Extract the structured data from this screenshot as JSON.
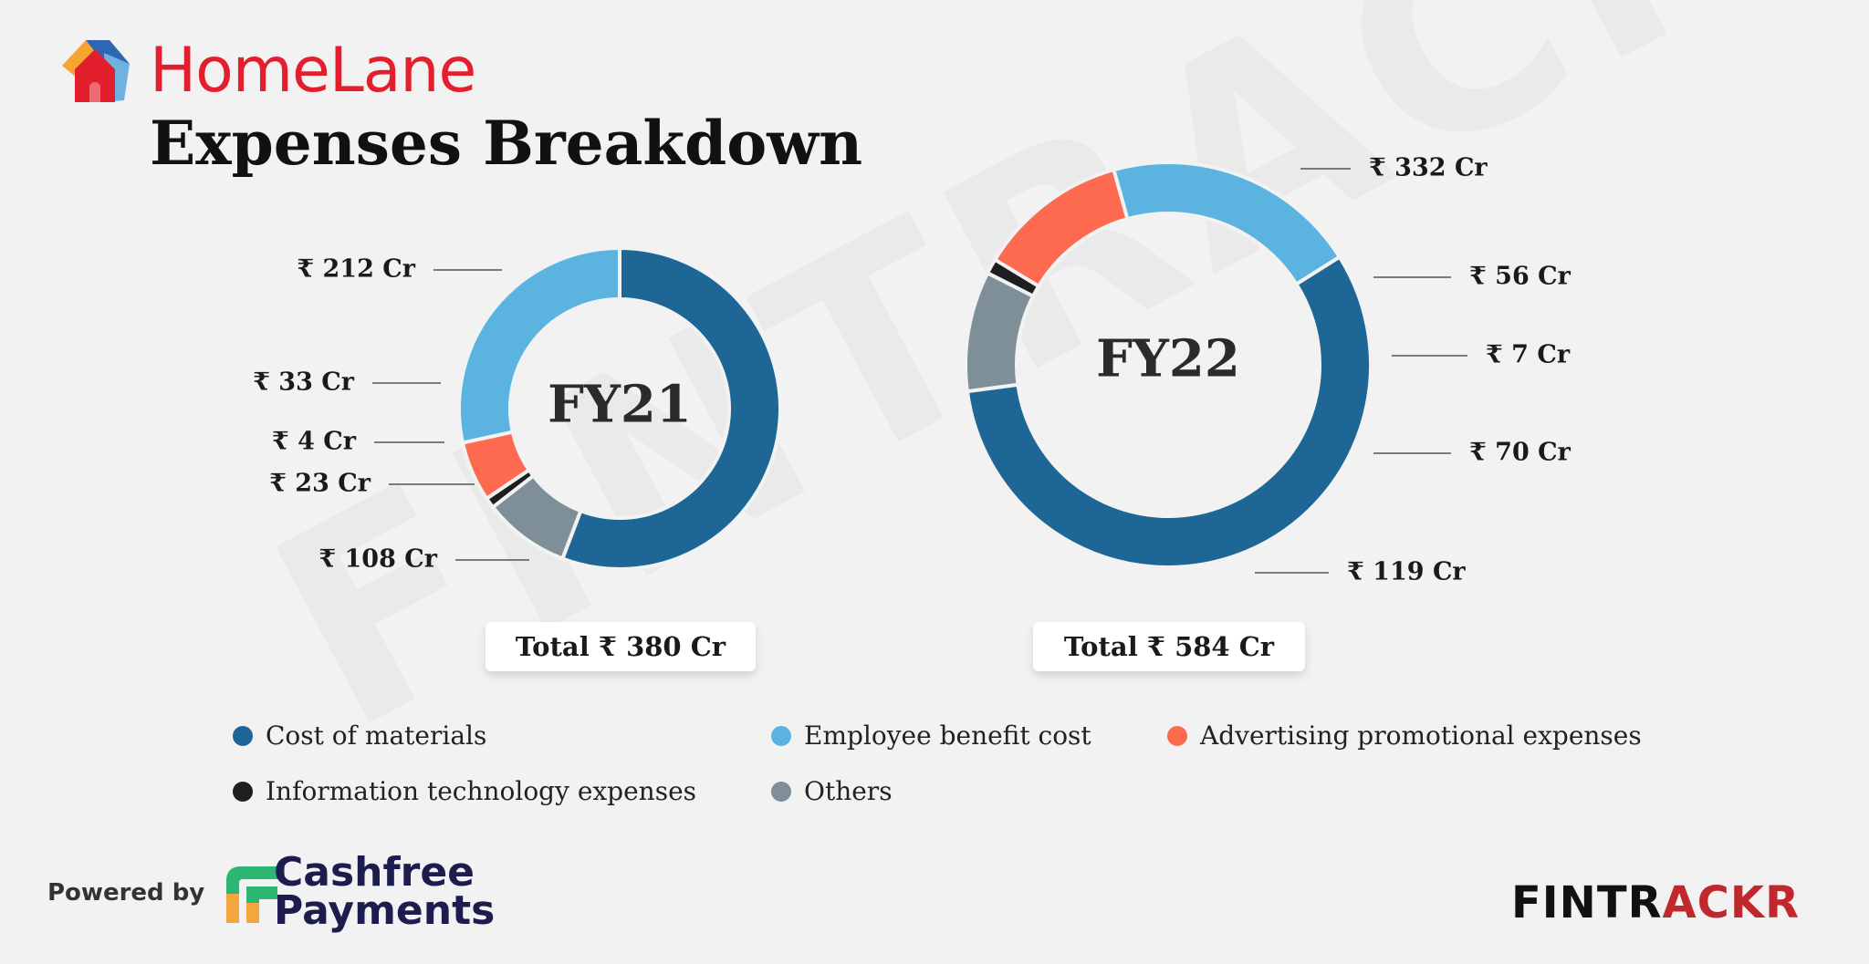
{
  "brand": {
    "name": "HomeLane",
    "color": "#e31e2d"
  },
  "title": "Expenses Breakdown",
  "watermark": "FINTRACKR",
  "colors": {
    "cost_of_materials": "#1d6695",
    "employee_benefit_cost": "#5bb3df",
    "advertising": "#fe6a50",
    "it_expenses": "#1e1e1e",
    "others": "#7e8f98"
  },
  "chart_data": [
    {
      "type": "pie",
      "title": "FY21",
      "total_label": "Total ₹ 380 Cr",
      "slices": [
        {
          "name": "Cost of materials",
          "value": 212,
          "label": "₹ 212 Cr",
          "color": "#1d6695"
        },
        {
          "name": "Employee benefit cost",
          "value": 108,
          "label": "₹ 108 Cr",
          "color": "#5bb3df"
        },
        {
          "name": "Advertising promotional expenses",
          "value": 23,
          "label": "₹ 23 Cr",
          "color": "#fe6a50"
        },
        {
          "name": "Information technology expenses",
          "value": 4,
          "label": "₹ 4 Cr",
          "color": "#1e1e1e"
        },
        {
          "name": "Others",
          "value": 33,
          "label": "₹ 33 Cr",
          "color": "#7e8f98"
        }
      ]
    },
    {
      "type": "pie",
      "title": "FY22",
      "total_label": "Total ₹ 584 Cr",
      "slices": [
        {
          "name": "Cost of materials",
          "value": 332,
          "label": "₹ 332 Cr",
          "color": "#1d6695"
        },
        {
          "name": "Employee benefit cost",
          "value": 119,
          "label": "₹ 119 Cr",
          "color": "#5bb3df"
        },
        {
          "name": "Advertising promotional expenses",
          "value": 70,
          "label": "₹ 70 Cr",
          "color": "#fe6a50"
        },
        {
          "name": "Information technology expenses",
          "value": 7,
          "label": "₹ 7 Cr",
          "color": "#1e1e1e"
        },
        {
          "name": "Others",
          "value": 56,
          "label": "₹ 56 Cr",
          "color": "#7e8f98"
        }
      ]
    }
  ],
  "legend": [
    {
      "label": "Cost of materials",
      "color": "#1d6695"
    },
    {
      "label": "Employee benefit cost",
      "color": "#5bb3df"
    },
    {
      "label": "Advertising promotional expenses",
      "color": "#fe6a50"
    },
    {
      "label": "Information technology expenses",
      "color": "#1e1e1e"
    },
    {
      "label": "Others",
      "color": "#7e8f98"
    }
  ],
  "footer": {
    "powered_by": "Powered by",
    "sponsor": "Cashfree\nPayments",
    "fintrackr_a": "FINTR",
    "fintrackr_b": "ACKR"
  }
}
